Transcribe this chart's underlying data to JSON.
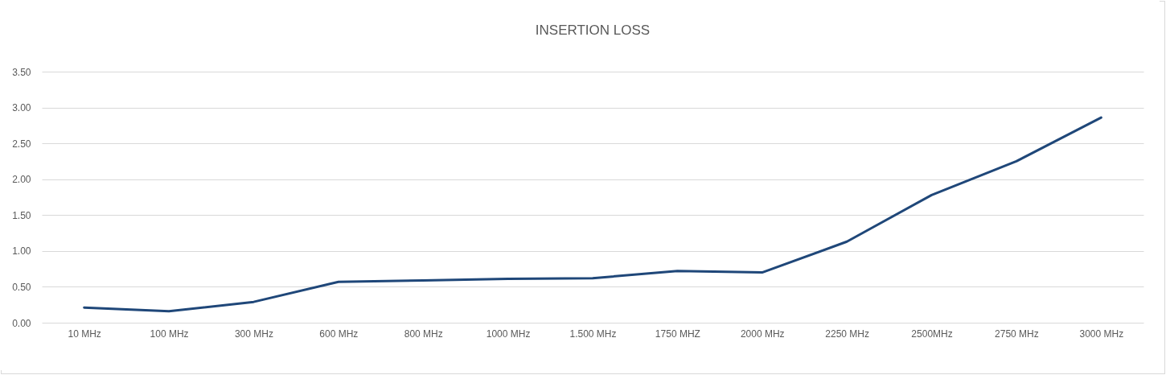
{
  "chart_data": {
    "type": "line",
    "title": "INSERTION LOSS",
    "categories": [
      "10 MHz",
      "100 MHz",
      "300 MHz",
      "600 MHz",
      "800 MHz",
      "1000 MHz",
      "1.500 MHz",
      "1750 MHZ",
      "2000 MHz",
      "2250 MHz",
      "2500MHz",
      "2750 MHz",
      "3000 MHz"
    ],
    "series": [
      {
        "color": "#1f4779",
        "values": [
          0.21,
          0.16,
          0.29,
          0.57,
          0.59,
          0.61,
          0.62,
          0.72,
          0.7,
          1.13,
          1.78,
          2.25,
          2.86
        ]
      }
    ],
    "ylim": [
      0,
      3.5
    ],
    "yticks": [
      {
        "value": 0,
        "label": "0.00"
      },
      {
        "value": 0.5,
        "label": "0.50"
      },
      {
        "value": 1,
        "label": "1.00"
      },
      {
        "value": 1.5,
        "label": "1.50"
      },
      {
        "value": 2,
        "label": "2.00"
      },
      {
        "value": 2.5,
        "label": "2.50"
      },
      {
        "value": 3,
        "label": "3.00"
      },
      {
        "value": 3.5,
        "label": "3.50"
      }
    ],
    "grid": "y",
    "line_style": "solid"
  }
}
